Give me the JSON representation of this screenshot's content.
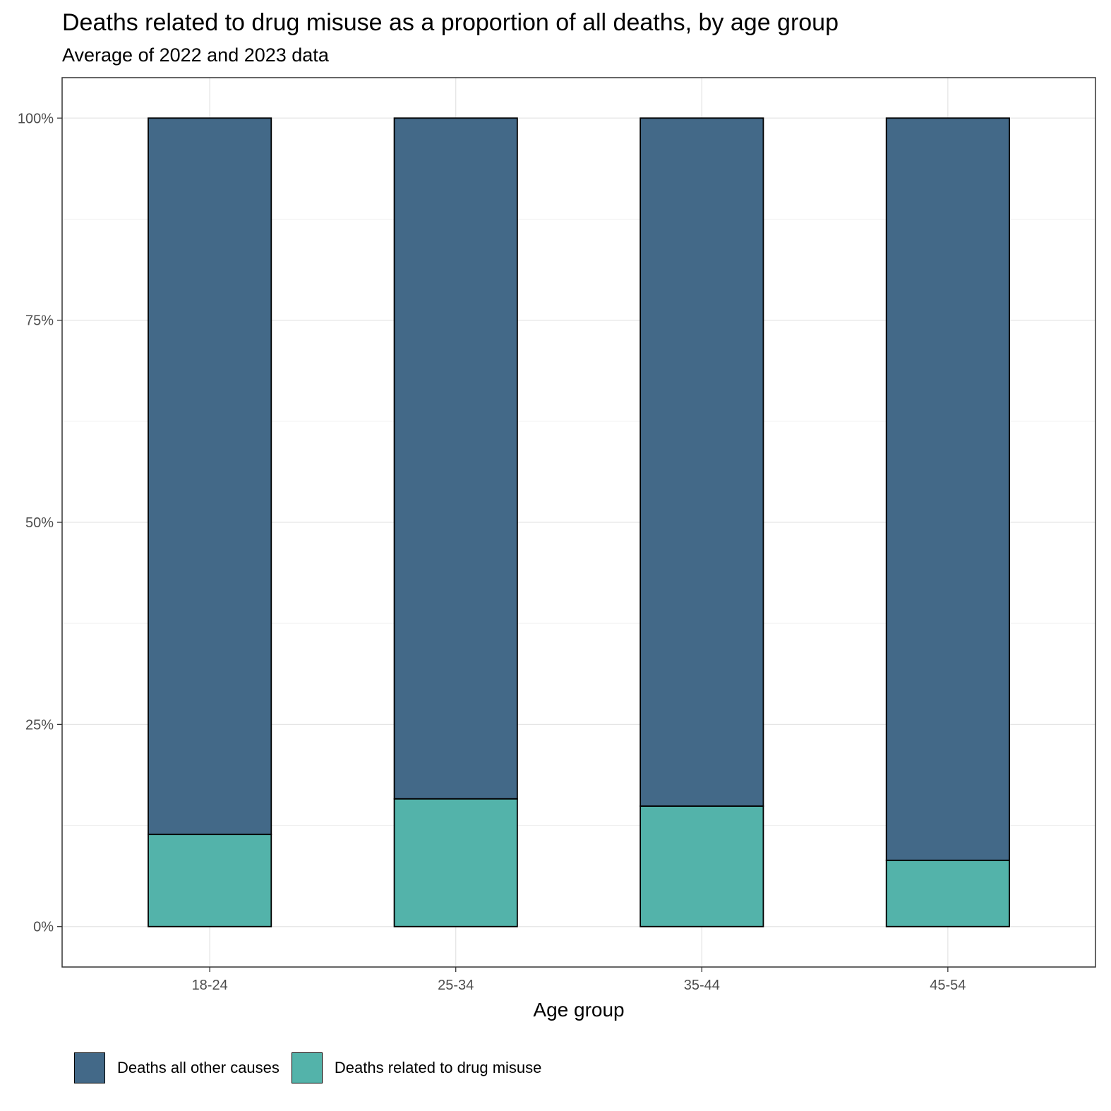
{
  "chart_data": {
    "type": "bar",
    "stacked": true,
    "title": "Deaths related to drug misuse as a proportion of all deaths, by age group",
    "subtitle": "Average of 2022 and 2023 data",
    "xlabel": "Age group",
    "ylabel": "",
    "categories": [
      "18-24",
      "25-34",
      "35-44",
      "45-54"
    ],
    "series": [
      {
        "name": "Deaths related to drug misuse",
        "color": "#53B3AA",
        "values": [
          11.4,
          15.8,
          14.9,
          8.2
        ]
      },
      {
        "name": "Deaths all other causes",
        "color": "#436988",
        "values": [
          88.6,
          84.2,
          85.1,
          91.8
        ]
      }
    ],
    "ylim": [
      -5,
      105
    ],
    "yticks": [
      0,
      25,
      50,
      75,
      100
    ],
    "ytick_labels": [
      "0%",
      "25%",
      "50%",
      "75%",
      "100%"
    ],
    "grid": true,
    "legend": {
      "position": "bottom-left",
      "entries": [
        "Deaths all other causes",
        "Deaths related to drug misuse"
      ]
    }
  }
}
